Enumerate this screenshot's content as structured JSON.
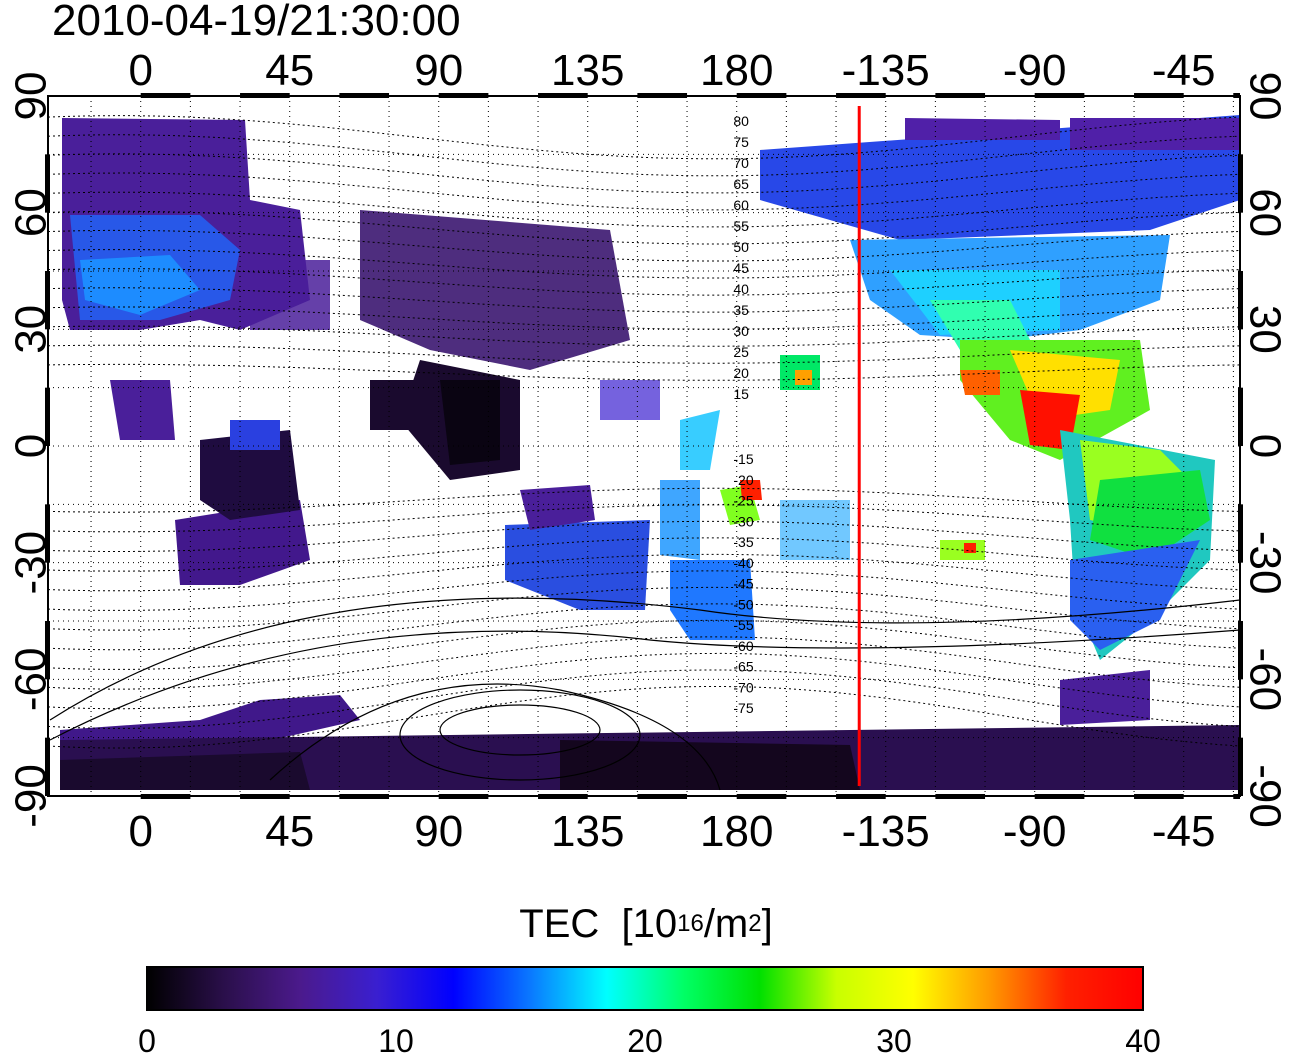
{
  "timestamp": "2010-04-19/21:30:00",
  "map": {
    "lon_ticks_top": [
      "0",
      "45",
      "90",
      "135",
      "180",
      "-135",
      "-90",
      "-45"
    ],
    "lon_ticks_bottom": [
      "0",
      "45",
      "90",
      "135",
      "180",
      "-135",
      "-90",
      "-45"
    ],
    "lat_ticks_left": [
      "90",
      "60",
      "30",
      "0",
      "-30",
      "-60",
      "-90"
    ],
    "lat_ticks_right": [
      "90",
      "60",
      "30",
      "0",
      "-30",
      "-60",
      "-90"
    ],
    "contour_labels": [
      "80",
      "75",
      "70",
      "65",
      "60",
      "55",
      "50",
      "45",
      "40",
      "35",
      "30",
      "25",
      "20",
      "15",
      "-15",
      "-20",
      "-25",
      "-30",
      "-35",
      "-40",
      "-45",
      "-50",
      "-55",
      "-60",
      "-65",
      "-70",
      "-75"
    ],
    "marker_line_lon": -143,
    "marker_line_color": "#ff0000",
    "grid": "dotted"
  },
  "colorbar": {
    "title": "TEC",
    "unit_prefix": "[10",
    "unit_exp": "16",
    "unit_mid": "/m",
    "unit_exp2": "2",
    "unit_suffix": "]",
    "tick_labels": [
      "0",
      "10",
      "20",
      "30",
      "40"
    ],
    "range": [
      0,
      40
    ],
    "colors": [
      "#000000",
      "#2a0f4a",
      "#4b1a8c",
      "#3a1fd0",
      "#0000ff",
      "#0a78ff",
      "#00ffff",
      "#00ff66",
      "#00e000",
      "#c8ff00",
      "#ffff00",
      "#ff9900",
      "#ff2000",
      "#ff0000"
    ]
  }
}
